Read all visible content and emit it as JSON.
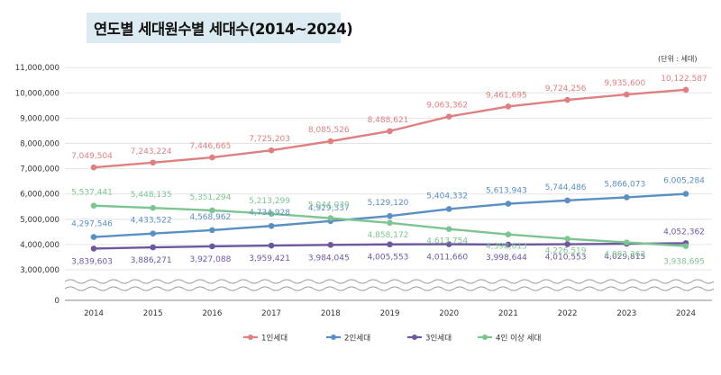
{
  "chart_data": {
    "type": "line",
    "title": "연도별 세대원수별 세대수(2014~2024)",
    "unit_label": "(단위 : 세대)",
    "x": [
      "2014",
      "2015",
      "2016",
      "2017",
      "2018",
      "2019",
      "2020",
      "2021",
      "2022",
      "2023",
      "2024"
    ],
    "y_ticks": [
      "0",
      "3,000,000",
      "4,000,000",
      "5,000,000",
      "6,000,000",
      "7,000,000",
      "8,000,000",
      "9,000,000",
      "10,000,000",
      "11,000,000"
    ],
    "ylim": [
      0,
      11000000
    ],
    "axis_break": [
      0,
      3000000
    ],
    "grid": true,
    "legend_position": "bottom",
    "series": [
      {
        "name": "1인세대",
        "color": "#e07f80",
        "values": [
          7049504,
          7243224,
          7446665,
          7725203,
          8085526,
          8488621,
          9063362,
          9461695,
          9724256,
          9935600,
          10122587
        ],
        "labels": [
          "7,049,504",
          "7,243,224",
          "7,446,665",
          "7,725,203",
          "8,085,526",
          "8,488,621",
          "9,063,362",
          "9,461,695",
          "9,724,256",
          "9,935,600",
          "10,122,587"
        ]
      },
      {
        "name": "2인세대",
        "color": "#5a8fc4",
        "values": [
          4297546,
          4433522,
          4568962,
          4734928,
          4929337,
          5129120,
          5404332,
          5613943,
          5744486,
          5866073,
          6005284
        ],
        "labels": [
          "4,297,546",
          "4,433,522",
          "4,568,962",
          "4,734,928",
          "4,929,337",
          "5,129,120",
          "5,404,332",
          "5,613,943",
          "5,744,486",
          "5,866,073",
          "6,005,284"
        ]
      },
      {
        "name": "3인세대",
        "color": "#6d57a0",
        "values": [
          3839603,
          3886271,
          3927088,
          3959421,
          3984045,
          4005553,
          4011660,
          3998644,
          4010553,
          4029815,
          4052362
        ],
        "labels": [
          "3,839,603",
          "3,886,271",
          "3,927,088",
          "3,959,421",
          "3,984,045",
          "4,005,553",
          "4,011,660",
          "3,998,644",
          "4,010,553",
          "4,029,815",
          "4,052,362"
        ]
      },
      {
        "name": "4인 이상 세대",
        "color": "#7cc590",
        "values": [
          5537441,
          5448135,
          5351294,
          5213299,
          5044039,
          4858172,
          4613754,
          4398613,
          4226519,
          4083363,
          3938695
        ],
        "labels": [
          "5,537,441",
          "5,448,135",
          "5,351,294",
          "5,213,299",
          "5,044,039",
          "4,858,172",
          "4,613,754",
          "4,398,613",
          "4,226,519",
          "4,083,363",
          "3,938,695"
        ]
      }
    ]
  }
}
